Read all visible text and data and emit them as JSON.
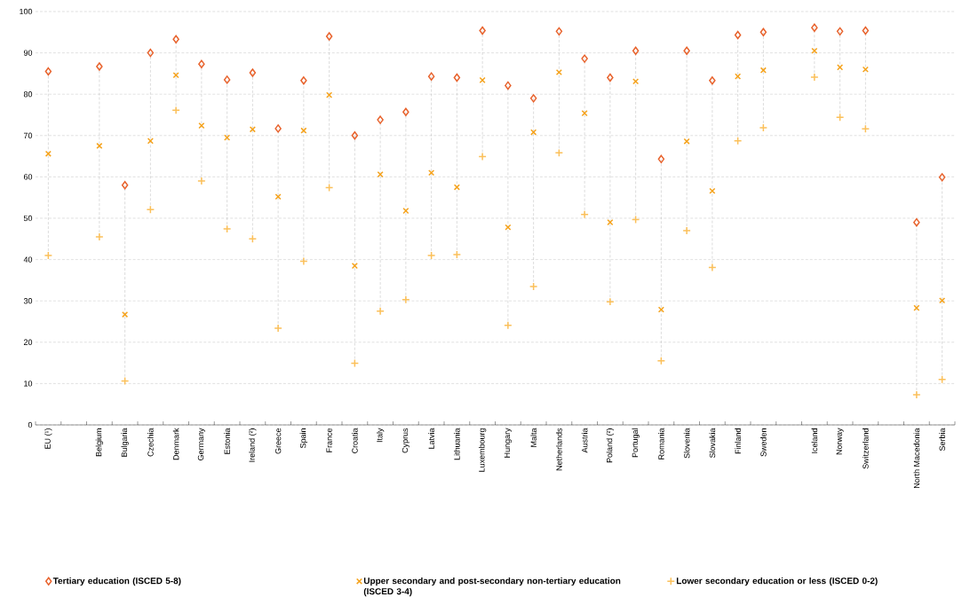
{
  "chart_data": {
    "type": "scatter",
    "categories": [
      "EU (¹)",
      null,
      "Belgium",
      "Bulgaria",
      "Czechia",
      "Denmark",
      "Germany",
      "Estonia",
      "Ireland (²)",
      "Greece",
      "Spain",
      "France",
      "Croatia",
      "Italy",
      "Cyprus",
      "Latvia",
      "Lithuania",
      "Luxembourg",
      "Hungary",
      "Malta",
      "Netherlands",
      "Austria",
      "Poland (²)",
      "Portugal",
      "Romania",
      "Slovenia",
      "Slovakia",
      "Finland",
      "Sweden",
      null,
      "Iceland",
      "Norway",
      "Switzerland",
      null,
      "North Macedonia",
      "Serbia"
    ],
    "series": [
      {
        "name": "Tertiary education (ISCED 5-8)",
        "color": "#e8622c",
        "marker": "diamond",
        "values": [
          85.5,
          null,
          86.7,
          58,
          90,
          93.3,
          87.3,
          83.5,
          85.2,
          71.7,
          83.3,
          94,
          70,
          73.8,
          75.7,
          84.3,
          84,
          95.4,
          82.1,
          79,
          95.2,
          88.6,
          84,
          90.5,
          64.3,
          90.5,
          83.3,
          94.3,
          95,
          null,
          96.1,
          95.2,
          95.4,
          null,
          49,
          59.9
        ]
      },
      {
        "name": "Upper secondary and post-secondary non-tertiary education (ISCED 3-4)",
        "color": "#f5a21b",
        "marker": "cross",
        "values": [
          65.6,
          null,
          67.5,
          26.7,
          68.7,
          84.6,
          72.4,
          69.5,
          71.5,
          55.2,
          71.2,
          79.8,
          38.5,
          60.6,
          51.8,
          61,
          57.5,
          83.4,
          47.8,
          70.8,
          85.3,
          75.4,
          49,
          83.1,
          27.9,
          68.6,
          56.6,
          84.3,
          85.8,
          null,
          90.5,
          86.5,
          86,
          null,
          28.3,
          30.1
        ]
      },
      {
        "name": "Lower secondary education or less (ISCED 0-2)",
        "color": "#fbc05a",
        "marker": "plus",
        "values": [
          41,
          null,
          45.5,
          10.6,
          52.1,
          76.1,
          59,
          47.4,
          45,
          23.4,
          39.6,
          57.4,
          14.9,
          27.5,
          30.3,
          41,
          41.2,
          64.9,
          24.1,
          33.5,
          65.8,
          50.9,
          29.8,
          49.7,
          15.5,
          47,
          38.1,
          68.7,
          71.9,
          null,
          84.1,
          74.4,
          71.6,
          null,
          7.3,
          11
        ]
      }
    ],
    "ylim": [
      0,
      100
    ],
    "yticks": [
      0,
      10,
      20,
      30,
      40,
      50,
      60,
      70,
      80,
      90,
      100
    ],
    "grid": "y",
    "legend": "bottom"
  }
}
